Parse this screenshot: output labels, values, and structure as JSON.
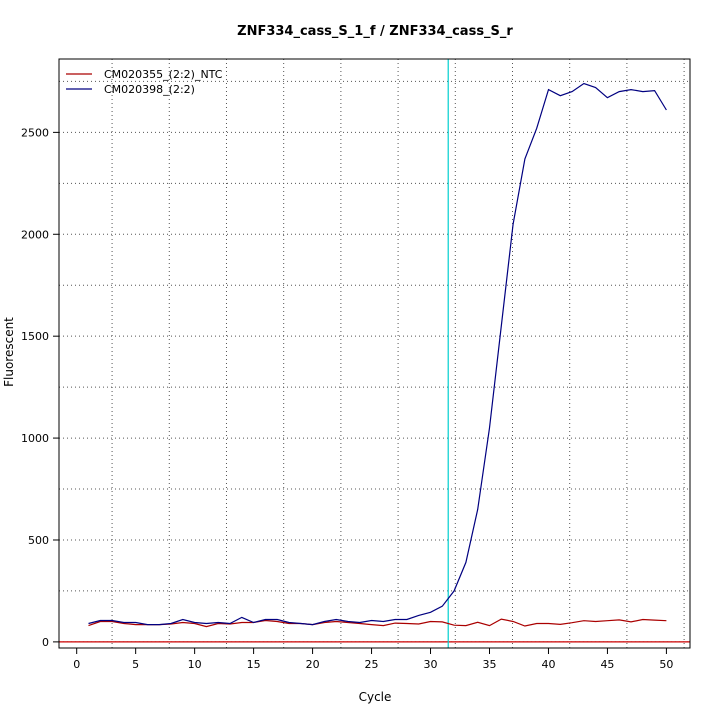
{
  "chart_data": {
    "type": "line",
    "title": "ZNF334_cass_S_1_f / ZNF334_cass_S_r",
    "xlabel": "Cycle",
    "ylabel": "Fluorescent",
    "xlim": [
      -1.5,
      52
    ],
    "ylim": [
      -30,
      2860
    ],
    "x_ticks": [
      "0",
      "5",
      "10",
      "15",
      "20",
      "25",
      "30",
      "35",
      "40",
      "45",
      "50"
    ],
    "y_ticks": [
      "0",
      "500",
      "1000",
      "1500",
      "2000",
      "2500"
    ],
    "grid": true,
    "legend_position": "top-left",
    "threshold_line": {
      "x": 31.5,
      "color": "#00d0d0"
    },
    "baseline_line": {
      "y": 0,
      "color": "#cc0000"
    },
    "x": [
      1,
      2,
      3,
      4,
      5,
      6,
      7,
      8,
      9,
      10,
      11,
      12,
      13,
      14,
      15,
      16,
      17,
      18,
      19,
      20,
      21,
      22,
      23,
      24,
      25,
      26,
      27,
      28,
      29,
      30,
      31,
      32,
      33,
      34,
      35,
      36,
      37,
      38,
      39,
      40,
      41,
      42,
      43,
      44,
      45,
      46,
      47,
      48,
      49,
      50
    ],
    "series": [
      {
        "name": "CM020355_(2:2)_NTC",
        "color": "#aa0000",
        "values": [
          80,
          100,
          100,
          90,
          85,
          85,
          85,
          88,
          95,
          90,
          75,
          90,
          88,
          95,
          95,
          105,
          100,
          90,
          90,
          85,
          95,
          100,
          95,
          90,
          85,
          80,
          92,
          90,
          88,
          100,
          98,
          82,
          80,
          96,
          80,
          112,
          100,
          78,
          90,
          90,
          86,
          94,
          104,
          100,
          104,
          108,
          98,
          110,
          107,
          104
        ]
      },
      {
        "name": "CM020398_(2:2)",
        "color": "#000080",
        "values": [
          90,
          105,
          105,
          95,
          95,
          85,
          85,
          90,
          110,
          95,
          90,
          95,
          90,
          120,
          95,
          110,
          110,
          95,
          90,
          85,
          100,
          110,
          100,
          95,
          105,
          100,
          110,
          110,
          130,
          145,
          175,
          250,
          390,
          650,
          1050,
          1550,
          2050,
          2370,
          2520,
          2710,
          2680,
          2700,
          2740,
          2720,
          2670,
          2700,
          2710,
          2700,
          2705,
          2610
        ]
      }
    ]
  }
}
